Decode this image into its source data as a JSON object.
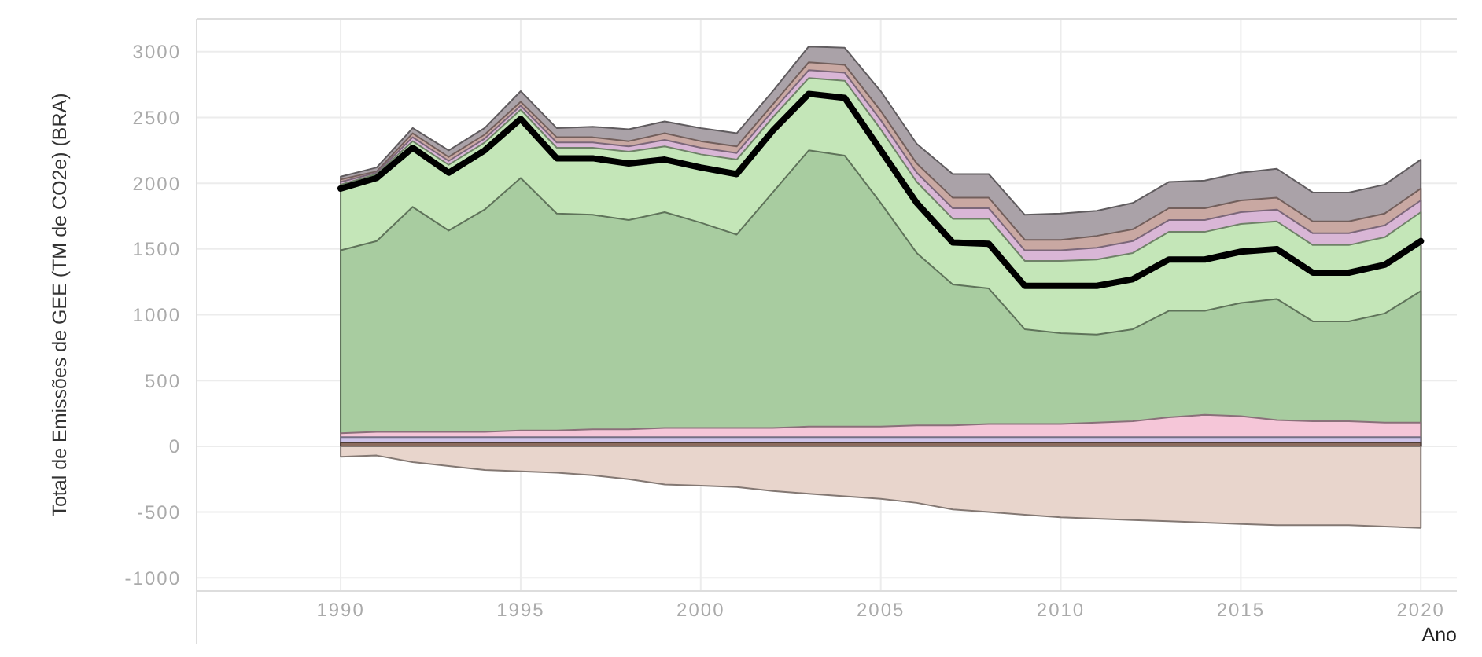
{
  "chart_data": {
    "type": "area",
    "ylabel": "Total de Emissões de GEE (TM de CO2e) (BRA)",
    "xlabel": "Ano",
    "x": [
      1990,
      1991,
      1992,
      1993,
      1994,
      1995,
      1996,
      1997,
      1998,
      1999,
      2000,
      2001,
      2002,
      2003,
      2004,
      2005,
      2006,
      2007,
      2008,
      2009,
      2010,
      2011,
      2012,
      2013,
      2014,
      2015,
      2016,
      2017,
      2018,
      2019,
      2020
    ],
    "xlim": [
      1986,
      2021
    ],
    "xticks": [
      1990,
      1995,
      2000,
      2005,
      2010,
      2015,
      2020
    ],
    "ylim": [
      -1100,
      3250
    ],
    "yticks": [
      -1000,
      -500,
      0,
      500,
      1000,
      1500,
      2000,
      2500,
      3000
    ],
    "grid": true,
    "series": [
      {
        "color": "#aaa2a8",
        "values": [
          2050,
          2120,
          2420,
          2250,
          2420,
          2700,
          2420,
          2430,
          2410,
          2470,
          2420,
          2380,
          2700,
          3040,
          3030,
          2700,
          2300,
          2070,
          2070,
          1760,
          1770,
          1790,
          1850,
          2010,
          2020,
          2080,
          2110,
          1930,
          1930,
          1990,
          2180
        ]
      },
      {
        "color": "#c9a8a2",
        "values": [
          2030,
          2090,
          2380,
          2200,
          2370,
          2620,
          2350,
          2350,
          2320,
          2380,
          2320,
          2280,
          2600,
          2920,
          2900,
          2550,
          2150,
          1890,
          1890,
          1570,
          1570,
          1600,
          1650,
          1810,
          1810,
          1870,
          1890,
          1710,
          1710,
          1770,
          1960
        ]
      },
      {
        "color": "#d9b6d6",
        "values": [
          2010,
          2080,
          2350,
          2170,
          2340,
          2590,
          2310,
          2310,
          2280,
          2330,
          2270,
          2230,
          2550,
          2860,
          2840,
          2480,
          2080,
          1810,
          1810,
          1490,
          1490,
          1510,
          1560,
          1720,
          1720,
          1780,
          1800,
          1620,
          1620,
          1680,
          1870
        ]
      },
      {
        "color": "#c4e6b8",
        "values": [
          1990,
          2070,
          2320,
          2140,
          2310,
          2560,
          2270,
          2270,
          2240,
          2280,
          2220,
          2180,
          2500,
          2800,
          2780,
          2410,
          2010,
          1730,
          1730,
          1410,
          1410,
          1420,
          1470,
          1630,
          1630,
          1690,
          1710,
          1530,
          1530,
          1590,
          1780
        ]
      },
      {
        "color": "#a8cca0",
        "values": [
          1490,
          1560,
          1820,
          1640,
          1800,
          2040,
          1770,
          1760,
          1720,
          1780,
          1700,
          1610,
          1930,
          2250,
          2210,
          1850,
          1470,
          1230,
          1200,
          890,
          860,
          850,
          890,
          1030,
          1030,
          1090,
          1120,
          950,
          950,
          1010,
          1180
        ]
      },
      {
        "color": "#f5c6d8",
        "values": [
          100,
          110,
          110,
          110,
          110,
          120,
          120,
          130,
          130,
          140,
          140,
          140,
          140,
          150,
          150,
          150,
          160,
          160,
          170,
          170,
          170,
          180,
          190,
          220,
          240,
          230,
          200,
          190,
          190,
          180,
          180
        ]
      },
      {
        "color": "#cfc4ea",
        "values": [
          70,
          70,
          70,
          70,
          70,
          70,
          70,
          70,
          70,
          70,
          70,
          70,
          70,
          70,
          70,
          70,
          70,
          70,
          70,
          70,
          70,
          70,
          70,
          70,
          70,
          70,
          70,
          70,
          70,
          70,
          70
        ]
      },
      {
        "color": "#8b6b5e",
        "values": [
          30,
          30,
          30,
          30,
          30,
          30,
          30,
          30,
          30,
          30,
          30,
          30,
          30,
          30,
          30,
          30,
          30,
          30,
          30,
          30,
          30,
          30,
          30,
          30,
          30,
          30,
          30,
          30,
          30,
          30,
          30
        ]
      },
      {
        "color": "#e8d5cc",
        "values": [
          -80,
          -70,
          -120,
          -150,
          -180,
          -190,
          -200,
          -220,
          -250,
          -290,
          -300,
          -310,
          -340,
          -360,
          -380,
          -400,
          -430,
          -480,
          -500,
          -520,
          -540,
          -550,
          -560,
          -570,
          -580,
          -590,
          -600,
          -600,
          -600,
          -610,
          -620
        ]
      },
      {
        "type": "line",
        "color": "#000000",
        "values": [
          1960,
          2040,
          2270,
          2080,
          2250,
          2490,
          2190,
          2190,
          2150,
          2180,
          2120,
          2070,
          2400,
          2680,
          2650,
          2250,
          1850,
          1550,
          1540,
          1220,
          1220,
          1220,
          1270,
          1420,
          1420,
          1480,
          1500,
          1320,
          1320,
          1380,
          1560
        ]
      }
    ]
  }
}
